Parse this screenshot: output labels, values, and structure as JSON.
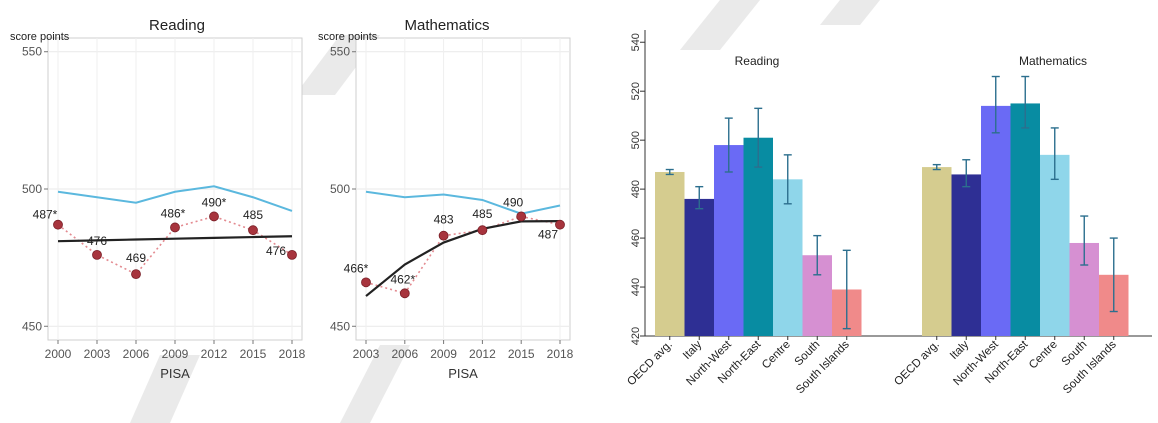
{
  "line_panels": [
    {
      "type": "line",
      "title": "Reading",
      "score_label": "score points",
      "xlabel": "PISA",
      "x": [
        2000,
        2003,
        2006,
        2009,
        2012,
        2015,
        2018
      ],
      "x_ticks": [
        "2000",
        "2003",
        "2006",
        "2009",
        "2012",
        "2015",
        "2018"
      ],
      "y_ticks": [
        "450",
        "500",
        "550"
      ],
      "ylim": [
        445,
        555
      ],
      "series": [
        {
          "values": [
            499,
            497,
            495,
            499,
            501,
            497,
            492
          ]
        },
        {
          "values": [
            487,
            476,
            469,
            486,
            490,
            485,
            476
          ],
          "labels": [
            "487*",
            "476",
            "469",
            "486*",
            "490*",
            "485",
            "476"
          ]
        },
        {
          "values": [
            481,
            481.3,
            481.6,
            481.9,
            482.2,
            482.5,
            482.8
          ]
        }
      ],
      "colors": {
        "oecd": "#5bb8de",
        "points": "#a7343d",
        "dotted": "#e38a90",
        "trend": "#222222"
      }
    },
    {
      "type": "line",
      "title": "Mathematics",
      "score_label": "score points",
      "xlabel": "PISA",
      "x": [
        2003,
        2006,
        2009,
        2012,
        2015,
        2018
      ],
      "x_ticks": [
        "2003",
        "2006",
        "2009",
        "2012",
        "2015",
        "2018"
      ],
      "y_ticks": [
        "450",
        "500",
        "550"
      ],
      "ylim": [
        445,
        555
      ],
      "series": [
        {
          "values": [
            499,
            497,
            498,
            496,
            491,
            494
          ]
        },
        {
          "values": [
            466,
            462,
            483,
            485,
            490,
            487
          ],
          "labels": [
            "466*",
            "462*",
            "483",
            "485",
            "490",
            "487"
          ]
        },
        {
          "values": [
            461,
            472.5,
            480.5,
            485.5,
            488.2,
            488.3
          ]
        }
      ],
      "colors": {
        "oecd": "#5bb8de",
        "points": "#a7343d",
        "dotted": "#e38a90",
        "trend": "#222222"
      }
    }
  ],
  "chart_data": {
    "type": "bar",
    "groups": [
      "Reading",
      "Mathematics"
    ],
    "categories": [
      "OECD avg.",
      "Italy",
      "North-West",
      "North-East",
      "Centre",
      "South",
      "South Islands"
    ],
    "y_ticks": [
      "420",
      "440",
      "460",
      "480",
      "500",
      "520",
      "540"
    ],
    "ylim": [
      420,
      545
    ],
    "values": [
      [
        487,
        476,
        498,
        501,
        484,
        453,
        439
      ],
      [
        489,
        486,
        514,
        515,
        494,
        458,
        445
      ]
    ],
    "err_low": [
      [
        486,
        472,
        487,
        489,
        474,
        445,
        423
      ],
      [
        488,
        481,
        503,
        505,
        484,
        449,
        430
      ]
    ],
    "err_high": [
      [
        488,
        481,
        509,
        513,
        494,
        461,
        455
      ],
      [
        490,
        492,
        526,
        526,
        505,
        469,
        460
      ]
    ],
    "colors": [
      "#d5cc8f",
      "#2e2f94",
      "#6a6af5",
      "#088ca2",
      "#8fd6ea",
      "#d690d2",
      "#f08a8a"
    ],
    "error_color": "#2c6f8e"
  }
}
